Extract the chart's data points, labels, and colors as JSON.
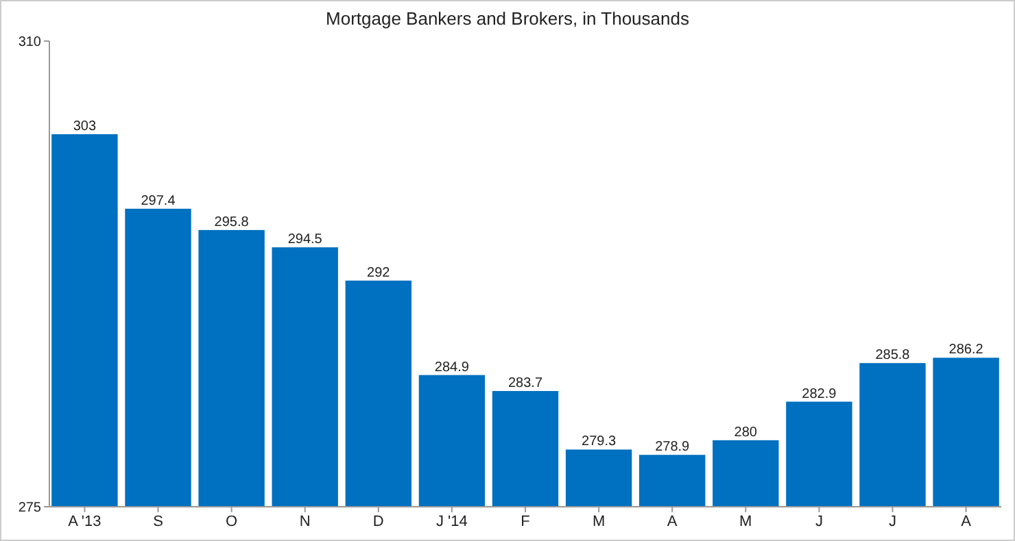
{
  "chart_data": {
    "type": "bar",
    "title": "Mortgage Bankers and Brokers, in Thousands",
    "categories": [
      "A '13",
      "S",
      "O",
      "N",
      "D",
      "J '14",
      "F",
      "M",
      "A",
      "M",
      "J",
      "J",
      "A"
    ],
    "values": [
      303,
      297.4,
      295.8,
      294.5,
      292,
      284.9,
      283.7,
      279.3,
      278.9,
      280,
      282.9,
      285.8,
      286.2
    ],
    "color": "#0070c0",
    "ylim": [
      275,
      310
    ],
    "yticks": [
      275,
      310
    ],
    "data_labels": true
  }
}
